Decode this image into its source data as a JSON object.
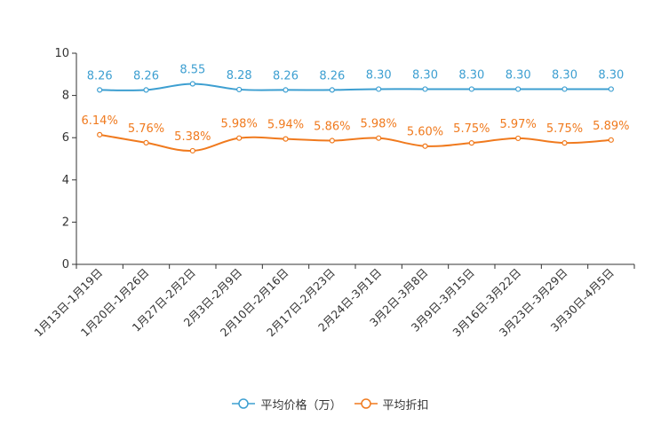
{
  "chart_data": {
    "type": "line",
    "title": "",
    "xlabel": "",
    "ylabel": "",
    "ylim": [
      0,
      10
    ],
    "yticks": [
      0,
      2,
      4,
      6,
      8,
      10
    ],
    "grid": false,
    "legend_position": "bottom-center",
    "categories": [
      "1月13日-1月19日",
      "1月20日-1月26日",
      "1月27日-2月2日",
      "2月3日-2月9日",
      "2月10日-2月16日",
      "2月17日-2月23日",
      "2月24日-3月1日",
      "3月2日-3月8日",
      "3月9日-3月15日",
      "3月16日-3月22日",
      "3月23日-3月29日",
      "3月30日-4月5日"
    ],
    "series": [
      {
        "name": "平均价格（万）",
        "color": "#3d9fd1",
        "values": [
          8.26,
          8.26,
          8.55,
          8.28,
          8.26,
          8.26,
          8.3,
          8.3,
          8.3,
          8.3,
          8.3,
          8.3
        ],
        "labels": [
          "8.26",
          "8.26",
          "8.55",
          "8.28",
          "8.26",
          "8.26",
          "8.30",
          "8.30",
          "8.30",
          "8.30",
          "8.30",
          "8.30"
        ]
      },
      {
        "name": "平均折扣",
        "color": "#f07a1e",
        "values": [
          6.14,
          5.76,
          5.38,
          5.98,
          5.94,
          5.86,
          5.98,
          5.6,
          5.75,
          5.97,
          5.75,
          5.89
        ],
        "labels": [
          "6.14%",
          "5.76%",
          "5.38%",
          "5.98%",
          "5.94%",
          "5.86%",
          "5.98%",
          "5.60%",
          "5.75%",
          "5.97%",
          "5.75%",
          "5.89%"
        ]
      }
    ]
  }
}
